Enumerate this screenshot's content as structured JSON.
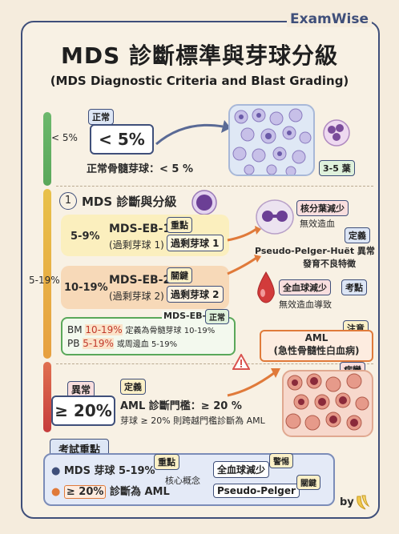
{
  "brand": "ExamWise",
  "title": "MDS 診斷標準與芽球分級",
  "subtitle": "(MDS Diagnostic Criteria and Blast Grading)",
  "normal": {
    "range": "< 5%",
    "tag": "正常",
    "value": "< 5%",
    "desc": "正常骨髓芽球：< 5 %",
    "lobes_tag": "3-5 葉"
  },
  "mds": {
    "range": "5-19%",
    "section_num": "1",
    "section_title": "MDS 診斷與分級",
    "eb1": {
      "pct": "5-9%",
      "name": "MDS-EB-1",
      "sub": "(過剩芽球 1)",
      "tag": "重點",
      "box": "過剩芽球 1"
    },
    "eb2": {
      "pct": "10-19%",
      "name": "MDS-EB-2",
      "sub": "(過剩芽球 2)",
      "tag": "關鍵",
      "box": "過剩芽球 2"
    },
    "callout": {
      "title": "MDS-EB-2",
      "tag": "正常",
      "bm_label": "BM",
      "bm_val": "10-19%",
      "bm_text": "定義為骨髓芽球 10-19%",
      "pb_label": "PB",
      "pb_val": "5-19%",
      "pb_text": "或周邊血 5-19%"
    },
    "right1": {
      "tag": "核分葉減少",
      "line1": "無效造血",
      "tag2": "定義",
      "line2": "Pseudo-Pelger-Huët 異常",
      "line3": "發育不良特徵"
    },
    "right2": {
      "tag": "全血球減少",
      "tag2": "考點",
      "line1": "無效造血導致"
    }
  },
  "aml": {
    "tag_top": "注意",
    "name": "AML",
    "full": "(急性骨髓性白血病)",
    "tag_bottom": "病變",
    "abnormal_tag": "異常",
    "value": "≥ 20%",
    "def_tag": "定義",
    "line1": "AML 診斷門檻：≥ 20 %",
    "line2": "芽球 ≥ 20% 則跨越門檻診斷為 AML"
  },
  "exam": {
    "title": "考試重點",
    "item1": "MDS 芽球 5-19%",
    "item1_tag": "重點",
    "item2_val": "≥ 20%",
    "item2_text": "診斷為 AML",
    "core": "核心概念",
    "box1": "全血球減少",
    "box1_tag": "警惕",
    "box2": "Pseudo-Pelger",
    "box2_tag": "關鍵"
  },
  "by": "by",
  "colors": {
    "frame": "#3f4f7a",
    "green": "#5aa85a",
    "yellow": "#e8c14a",
    "red": "#d9534f"
  }
}
